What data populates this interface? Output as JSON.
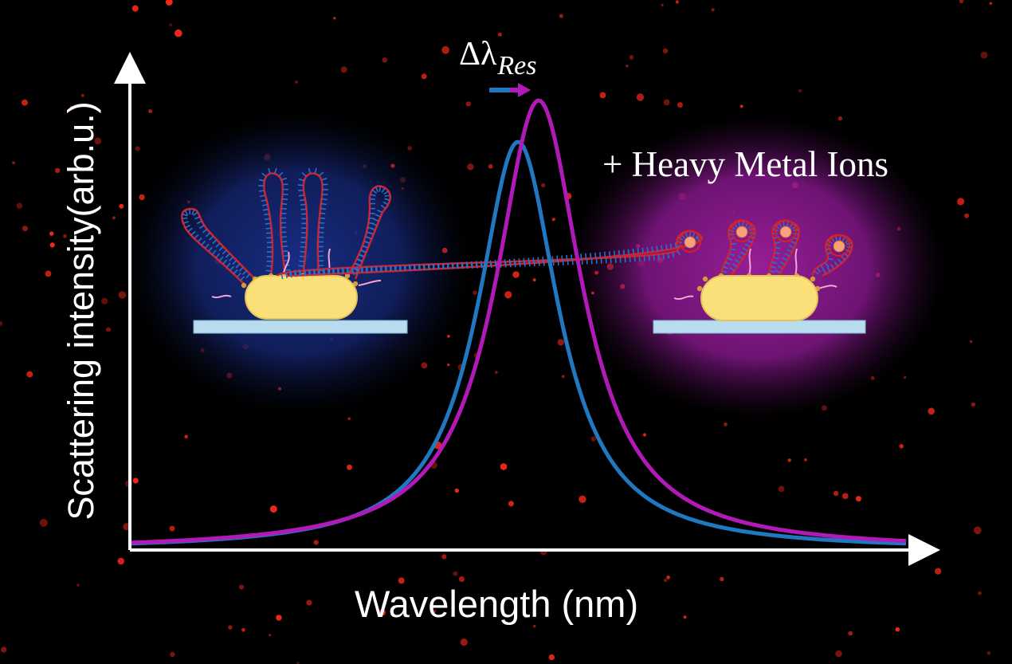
{
  "diagram": {
    "y_axis_label": "Scattering intensity(arb.u.)",
    "x_axis_label": "Wavelength (nm)",
    "shift_label_delta": "Δλ",
    "shift_label_subscript": "Res",
    "condition_label": "+ Heavy Metal Ions",
    "colors": {
      "background": "#000000",
      "before_curve": "#1f78c0",
      "after_curve": "#b21ab8",
      "before_glow": "#14287a",
      "after_glow": "#9a1b9a",
      "nanorod": "#fbe07a",
      "substrate": "#b8dcee",
      "dna_backbone": "#d81f26",
      "dna_rungs": "#2c6fc9",
      "metal_ion": "#f6a27a",
      "speckle": "#ff2a1a"
    },
    "icons": {
      "before_panel": "gold-nanorod-with-dna-hairpins-icon",
      "after_panel": "gold-nanorod-with-folded-dna-and-metal-ions-icon",
      "shift_arrow": "right-arrow-icon"
    }
  }
}
